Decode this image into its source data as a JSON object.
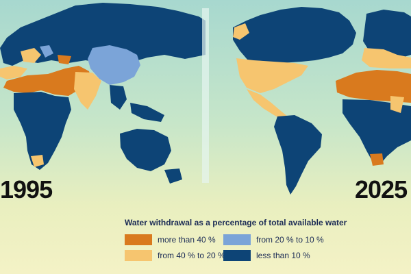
{
  "maps": [
    {
      "year": "1995"
    },
    {
      "year": "2025"
    }
  ],
  "legend": {
    "title": "Water withdrawal as a percentage of total available water",
    "items": [
      {
        "label": "more than 40 %",
        "color": "#d97a1e"
      },
      {
        "label": "from 40 % to 20 %",
        "color": "#f6c56f"
      },
      {
        "label": "from 20 % to 10 %",
        "color": "#7ba4d8"
      },
      {
        "label": "less than 10 %",
        "color": "#0d4476"
      }
    ]
  }
}
